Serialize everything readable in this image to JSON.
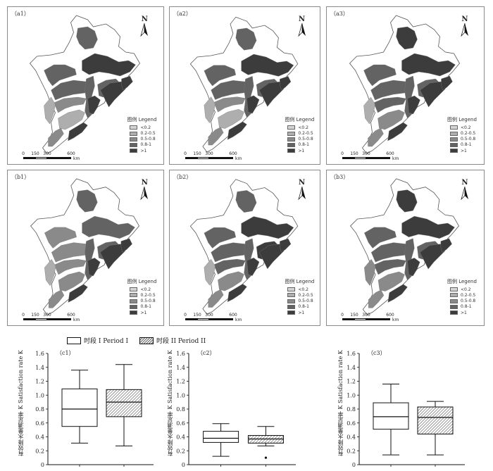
{
  "maps": [
    {
      "label": "（a1）",
      "classes": [
        3,
        4,
        3,
        3,
        2,
        1,
        1,
        3,
        3,
        4,
        4,
        4,
        4,
        2
      ]
    },
    {
      "label": "（a2）",
      "classes": [
        3,
        4,
        3,
        3,
        2,
        1,
        1,
        3,
        3,
        4,
        4,
        4,
        4,
        2
      ]
    },
    {
      "label": "（a3）",
      "classes": [
        4,
        4,
        3,
        3,
        3,
        1,
        2,
        3,
        3,
        4,
        4,
        4,
        4,
        2
      ]
    },
    {
      "label": "（b1）",
      "classes": [
        3,
        3,
        2,
        2,
        2,
        1,
        2,
        3,
        3,
        4,
        4,
        4,
        4,
        2
      ]
    },
    {
      "label": "（b2）",
      "classes": [
        3,
        4,
        3,
        3,
        3,
        1,
        2,
        3,
        4,
        4,
        4,
        4,
        4,
        2
      ]
    },
    {
      "label": "（b3）",
      "classes": [
        4,
        4,
        3,
        3,
        3,
        2,
        2,
        3,
        3,
        4,
        4,
        4,
        4,
        2
      ]
    }
  ],
  "map_legend": {
    "title": "图例 Legend",
    "items": [
      "<0.2",
      "0.2-0.5",
      "0.5-0.8",
      "0.8-1",
      ">1"
    ],
    "colors": [
      "#d4d4d4",
      "#aeaeae",
      "#8a8a8a",
      "#636363",
      "#3c3c3c"
    ]
  },
  "north_letter": "N",
  "scale_bar": {
    "ticks": [
      "0",
      "150",
      "300",
      "600"
    ],
    "unit": "km"
  },
  "box_legend": {
    "period1": "时段 I  Period I",
    "period2": "时段 II  Period II"
  },
  "y_axis_label": "有效降水量满足率 K Satisfaction rate K",
  "chart_data": [
    {
      "type": "box",
      "panel": "（c1）",
      "ylim": [
        0,
        1.6
      ],
      "yticks": [
        "0",
        "0.2",
        "0.4",
        "0.6",
        "0.8",
        "1.0",
        "1.2",
        "1.4",
        "1.6"
      ],
      "series": [
        {
          "name": "时段 I  Period I",
          "whislo": 0.31,
          "q1": 0.55,
          "med": 0.8,
          "q3": 1.09,
          "whishi": 1.36,
          "outliers": []
        },
        {
          "name": "时段 II  Period II",
          "whislo": 0.27,
          "q1": 0.69,
          "med": 0.9,
          "q3": 1.08,
          "whishi": 1.44,
          "outliers": []
        }
      ]
    },
    {
      "type": "box",
      "panel": "（c2）",
      "ylim": [
        0,
        1.6
      ],
      "yticks": [
        "0",
        "0.2",
        "0.4",
        "0.6",
        "0.8",
        "1.0",
        "1.2",
        "1.4",
        "1.6"
      ],
      "series": [
        {
          "name": "时段 I  Period I",
          "whislo": 0.12,
          "q1": 0.32,
          "med": 0.38,
          "q3": 0.48,
          "whishi": 0.59,
          "outliers": []
        },
        {
          "name": "时段 II  Period II",
          "whislo": 0.27,
          "q1": 0.31,
          "med": 0.37,
          "q3": 0.42,
          "whishi": 0.55,
          "outliers": [
            0.1
          ]
        }
      ]
    },
    {
      "type": "box",
      "panel": "（c3）",
      "ylim": [
        0,
        1.6
      ],
      "yticks": [
        "0",
        "0.2",
        "0.4",
        "0.6",
        "0.8",
        "1.0",
        "1.2",
        "1.4",
        "1.6"
      ],
      "series": [
        {
          "name": "时段 I  Period I",
          "whislo": 0.14,
          "q1": 0.51,
          "med": 0.69,
          "q3": 0.89,
          "whishi": 1.16,
          "outliers": []
        },
        {
          "name": "时段 II  Period II",
          "whislo": 0.14,
          "q1": 0.44,
          "med": 0.68,
          "q3": 0.83,
          "whishi": 0.91,
          "outliers": []
        }
      ]
    }
  ]
}
